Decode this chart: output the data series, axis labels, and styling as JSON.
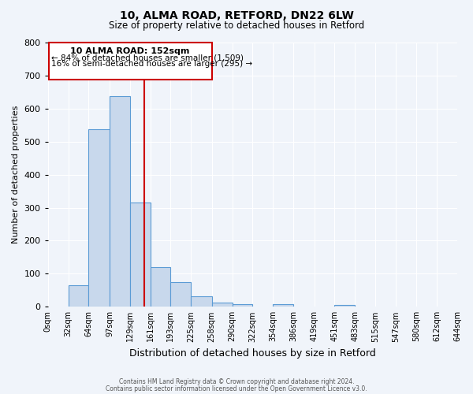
{
  "title": "10, ALMA ROAD, RETFORD, DN22 6LW",
  "subtitle": "Size of property relative to detached houses in Retford",
  "xlabel": "Distribution of detached houses by size in Retford",
  "ylabel": "Number of detached properties",
  "bar_color": "#c8d8ec",
  "bar_edge_color": "#5b9bd5",
  "background_color": "#f0f4fa",
  "grid_color": "#ffffff",
  "annotation_box_color": "#cc0000",
  "property_line_color": "#cc0000",
  "property_value": 152,
  "annotation_title": "10 ALMA ROAD: 152sqm",
  "annotation_line1": "← 84% of detached houses are smaller (1,509)",
  "annotation_line2": "16% of semi-detached houses are larger (295) →",
  "bins": [
    0,
    32,
    64,
    97,
    129,
    161,
    193,
    225,
    258,
    290,
    322,
    354,
    386,
    419,
    451,
    483,
    515,
    547,
    580,
    612,
    644
  ],
  "counts": [
    0,
    65,
    537,
    637,
    315,
    120,
    75,
    32,
    12,
    8,
    0,
    8,
    0,
    0,
    5,
    0,
    0,
    0,
    0,
    0
  ],
  "ylim": [
    0,
    800
  ],
  "yticks": [
    0,
    100,
    200,
    300,
    400,
    500,
    600,
    700,
    800
  ],
  "tick_labels": [
    "0sqm",
    "32sqm",
    "64sqm",
    "97sqm",
    "129sqm",
    "161sqm",
    "193sqm",
    "225sqm",
    "258sqm",
    "290sqm",
    "322sqm",
    "354sqm",
    "386sqm",
    "419sqm",
    "451sqm",
    "483sqm",
    "515sqm",
    "547sqm",
    "580sqm",
    "612sqm",
    "644sqm"
  ],
  "footer_line1": "Contains HM Land Registry data © Crown copyright and database right 2024.",
  "footer_line2": "Contains public sector information licensed under the Open Government Licence v3.0."
}
